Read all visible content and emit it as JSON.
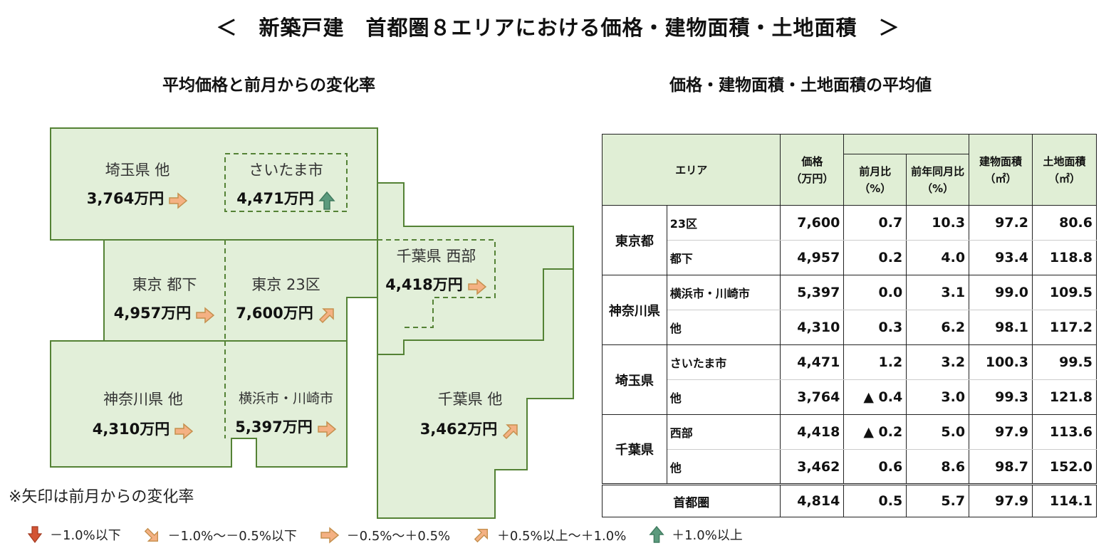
{
  "title": "＜　新築戸建　首都圏８エリアにおける価格・建物面積・土地面積　＞",
  "map_section": {
    "heading": "平均価格と前月からの変化率",
    "regions": [
      {
        "id": "saitama-other",
        "name": "埼玉県 他",
        "price": "3,764万円",
        "trend": "flat"
      },
      {
        "id": "saitama-city",
        "name": "さいたま市",
        "price": "4,471万円",
        "trend": "up-strong"
      },
      {
        "id": "tokyo-toka",
        "name": "東京 都下",
        "price": "4,957万円",
        "trend": "flat"
      },
      {
        "id": "tokyo-23",
        "name": "東京 23区",
        "price": "7,600万円",
        "trend": "up"
      },
      {
        "id": "chiba-west",
        "name": "千葉県 西部",
        "price": "4,418万円",
        "trend": "flat"
      },
      {
        "id": "kanagawa-other",
        "name": "神奈川県 他",
        "price": "4,310万円",
        "trend": "flat"
      },
      {
        "id": "yokohama-kawasaki",
        "name": "横浜市・川崎市",
        "price": "5,397万円",
        "trend": "flat"
      },
      {
        "id": "chiba-other",
        "name": "千葉県 他",
        "price": "3,462万円",
        "trend": "up"
      }
    ],
    "note": "※矢印は前月からの変化率"
  },
  "table_section": {
    "heading": "価格・建物面積・土地面積の平均値",
    "headers": {
      "area": "エリア",
      "price": "価格",
      "price_unit": "（万円）",
      "mom": "前月比",
      "mom_unit": "（%）",
      "yoy": "前年同月比",
      "yoy_unit": "（%）",
      "building": "建物面積",
      "building_unit": "（㎡）",
      "land": "土地面積",
      "land_unit": "（㎡）"
    },
    "groups": [
      {
        "pref": "東京都",
        "rows": [
          {
            "area": "23区",
            "price": "7,600",
            "mom": "0.7",
            "yoy": "10.3",
            "building": "97.2",
            "land": "80.6"
          },
          {
            "area": "都下",
            "price": "4,957",
            "mom": "0.2",
            "yoy": "4.0",
            "building": "93.4",
            "land": "118.8"
          }
        ]
      },
      {
        "pref": "神奈川県",
        "rows": [
          {
            "area": "横浜市・川崎市",
            "price": "5,397",
            "mom": "0.0",
            "yoy": "3.1",
            "building": "99.0",
            "land": "109.5"
          },
          {
            "area": "他",
            "price": "4,310",
            "mom": "0.3",
            "yoy": "6.2",
            "building": "98.1",
            "land": "117.2"
          }
        ]
      },
      {
        "pref": "埼玉県",
        "rows": [
          {
            "area": "さいたま市",
            "price": "4,471",
            "mom": "1.2",
            "yoy": "3.2",
            "building": "100.3",
            "land": "99.5"
          },
          {
            "area": "他",
            "price": "3,764",
            "mom": "▲ 0.4",
            "yoy": "3.0",
            "building": "99.3",
            "land": "121.8"
          }
        ]
      },
      {
        "pref": "千葉県",
        "rows": [
          {
            "area": "西部",
            "price": "4,418",
            "mom": "▲ 0.2",
            "yoy": "5.0",
            "building": "97.9",
            "land": "113.6"
          },
          {
            "area": "他",
            "price": "3,462",
            "mom": "0.6",
            "yoy": "8.6",
            "building": "98.7",
            "land": "152.0"
          }
        ]
      }
    ],
    "total": {
      "area": "首都圏",
      "price": "4,814",
      "mom": "0.5",
      "yoy": "5.7",
      "building": "97.9",
      "land": "114.1"
    }
  },
  "legend": [
    {
      "trend": "down-strong",
      "label": "－1.0%以下"
    },
    {
      "trend": "down",
      "label": "－1.0%～－0.5%以下"
    },
    {
      "trend": "flat",
      "label": "－0.5%～＋0.5%"
    },
    {
      "trend": "up",
      "label": "＋0.5%以上～＋1.0%"
    },
    {
      "trend": "up-strong",
      "label": "＋1.0%以上"
    }
  ],
  "colors": {
    "map_fill": "#e2efd9",
    "map_border": "#548235",
    "header_fill": "#e0eed5",
    "arrow_orange": "#f4b183",
    "arrow_orange_stroke": "#c5904e",
    "arrow_green": "#5b9a7d",
    "arrow_red": "#d35434"
  },
  "icons": {
    "flat": "arrow-right-icon",
    "up": "arrow-up-right-icon",
    "up-strong": "arrow-up-icon",
    "down": "arrow-down-right-icon",
    "down-strong": "arrow-down-icon"
  }
}
